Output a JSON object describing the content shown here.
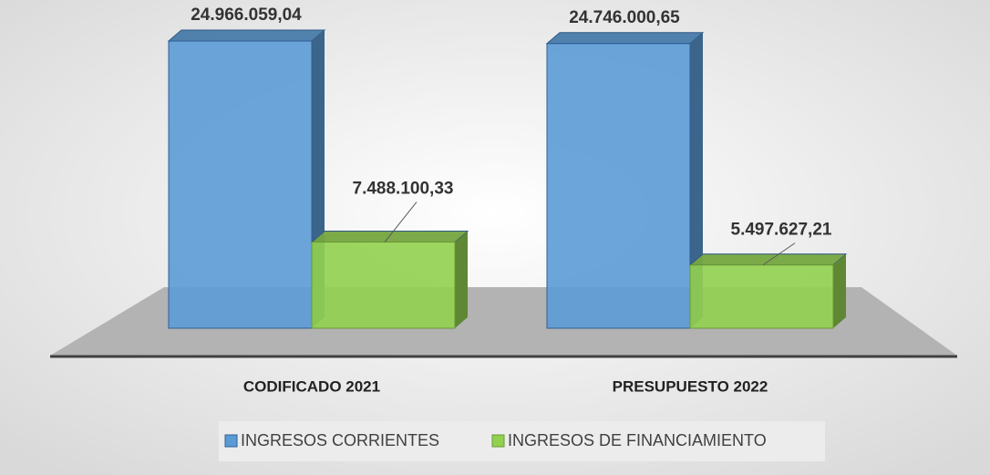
{
  "chart_data": {
    "type": "bar",
    "categories": [
      "CODIFICADO 2021",
      "PRESUPUESTO 2022"
    ],
    "series": [
      {
        "name": "INGRESOS CORRIENTES",
        "color": "#5b9bd5",
        "values": [
          24966059.04,
          24746000.65
        ],
        "value_labels": [
          "24.966.059,04",
          "24.746.000,65"
        ]
      },
      {
        "name": "INGRESOS DE FINANCIAMIENTO",
        "color": "#92d050",
        "values": [
          7488100.33,
          5497627.21
        ],
        "value_labels": [
          "7.488.100,33",
          "5.497.627,21"
        ]
      }
    ]
  }
}
